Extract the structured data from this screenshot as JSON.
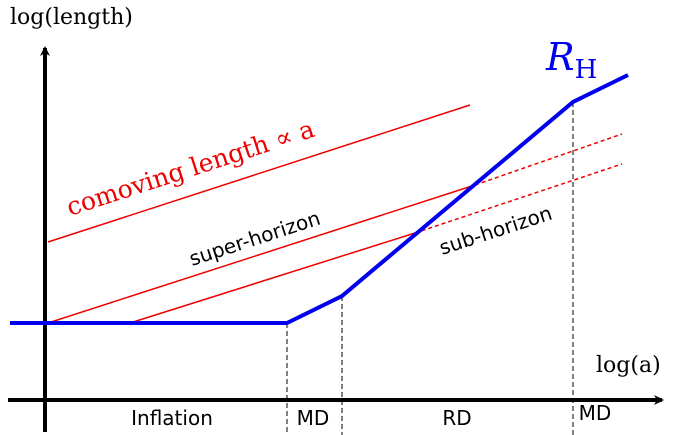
{
  "axes": {
    "y_label": "log(length)",
    "x_label": "log(a)"
  },
  "hubble_radius": {
    "symbol": "R",
    "subscript": "H"
  },
  "comoving_label": "comoving length ∝ a",
  "regions": {
    "super": "super-horizon",
    "sub": "sub-horizon"
  },
  "eras": [
    "Inflation",
    "MD",
    "RD",
    "MD"
  ]
}
